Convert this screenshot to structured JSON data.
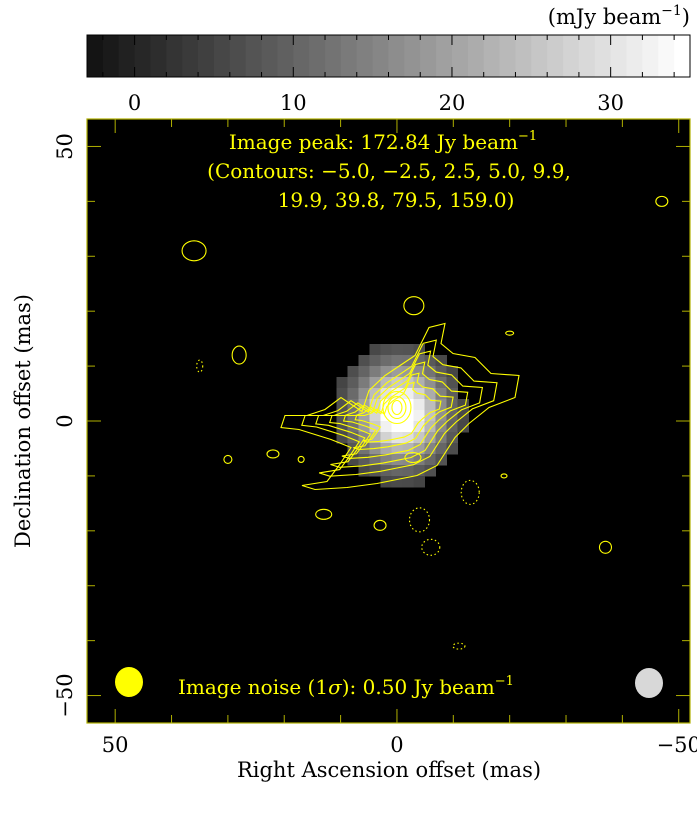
{
  "chart_data": {
    "type": "heatmap",
    "colorbar": {
      "unit_label": "(mJy beam",
      "unit_exp": "−1",
      "unit_close": ")",
      "ticks": [
        "0",
        "10",
        "20",
        "30"
      ],
      "tick_values": [
        0,
        10,
        20,
        30
      ],
      "range": [
        -3,
        35
      ]
    },
    "x_axis": {
      "label": "Right Ascension offset (mas)",
      "ticks": [
        "50",
        "0",
        "−50"
      ],
      "tick_values": [
        50,
        0,
        -50
      ],
      "range": [
        55,
        -52
      ]
    },
    "y_axis": {
      "label": "Declination offset (mas)",
      "ticks": [
        "50",
        "0",
        "−50"
      ],
      "tick_values": [
        50,
        0,
        -50
      ],
      "range": [
        -55,
        55
      ]
    },
    "annotations": {
      "peak_prefix": "Image peak:  172.84 Jy beam",
      "peak_exp": "−1",
      "contours_line1": "(Contours: −5.0, −2.5, 2.5, 5.0, 9.9,",
      "contours_line2": "19.9, 39.8, 79.5, 159.0)",
      "noise_prefix": "Image noise (1",
      "noise_sigma": "σ",
      "noise_mid": "): 0.50 Jy beam",
      "noise_exp": "−1"
    },
    "contour_levels": [
      -5.0,
      -2.5,
      2.5,
      5.0,
      9.9,
      19.9,
      39.8,
      79.5,
      159.0
    ],
    "source": {
      "ra": 0,
      "dec": 1,
      "peak_mjy": 35
    },
    "colors": {
      "plot_background": "#000000",
      "contour": "#ffff00",
      "beam_left": "#ffff00",
      "beam_right": "#d8d8d8",
      "frame": "#b0b000"
    }
  }
}
